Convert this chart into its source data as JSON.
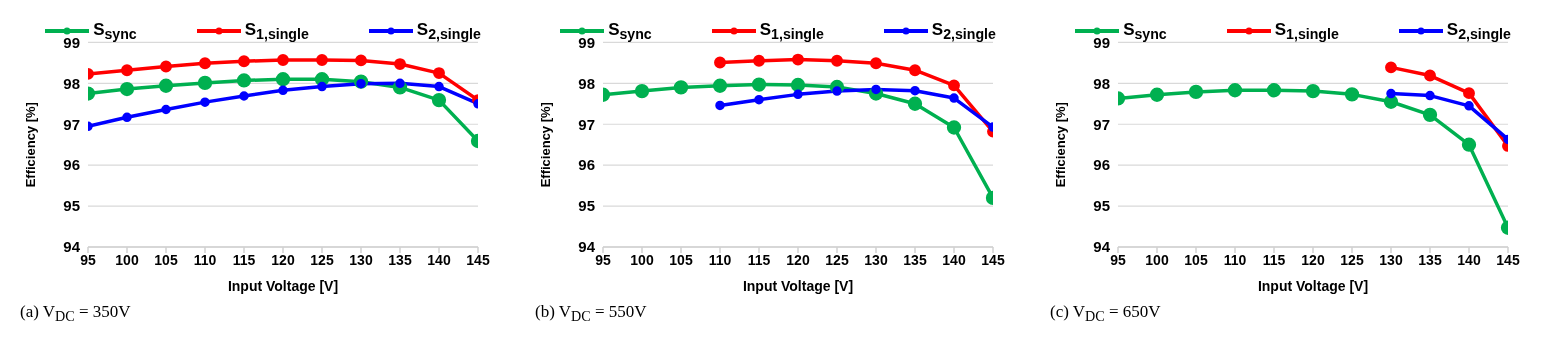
{
  "chart_data": [
    {
      "type": "line",
      "annotations": [
        "(a) V$_{DC}$ = 350V"
      ],
      "xlabel": "Input Voltage [V]",
      "ylabel": "Efficiency [%]",
      "x": [
        95,
        100,
        105,
        110,
        115,
        120,
        125,
        130,
        135,
        140,
        145
      ],
      "xlim": [
        95,
        145
      ],
      "xticks": [
        95,
        100,
        105,
        110,
        115,
        120,
        125,
        130,
        135,
        140,
        145
      ],
      "ylim": [
        94,
        99
      ],
      "yticks": [
        94,
        95,
        96,
        97,
        98,
        99
      ],
      "grid": "y",
      "legend": "top",
      "marker": "circle",
      "line_style": "solid",
      "series": [
        {
          "name": "S$_{sync}$",
          "color": "#00b050",
          "values": [
            97.75,
            97.86,
            97.94,
            98.01,
            98.07,
            98.1,
            98.1,
            98.04,
            97.9,
            97.59,
            96.59
          ]
        },
        {
          "name": "S$_{1,single}$",
          "color": "#ff0000",
          "values": [
            98.23,
            98.32,
            98.41,
            98.49,
            98.54,
            98.57,
            98.57,
            98.56,
            98.47,
            98.25,
            97.59
          ]
        },
        {
          "name": "S$_{2,single}$",
          "color": "#0000ff",
          "values": [
            96.95,
            97.17,
            97.36,
            97.54,
            97.69,
            97.83,
            97.92,
            97.99,
            98.0,
            97.92,
            97.5
          ]
        }
      ]
    },
    {
      "type": "line",
      "annotations": [
        "(b) V$_{DC}$ = 550V"
      ],
      "xlabel": "Input Voltage [V]",
      "ylabel": "Efficiency [%]",
      "x": [
        95,
        100,
        105,
        110,
        115,
        120,
        125,
        130,
        135,
        140,
        145
      ],
      "xlim": [
        95,
        145
      ],
      "xticks": [
        95,
        100,
        105,
        110,
        115,
        120,
        125,
        130,
        135,
        140,
        145
      ],
      "ylim": [
        94,
        99
      ],
      "yticks": [
        94,
        95,
        96,
        97,
        98,
        99
      ],
      "grid": "y",
      "legend": "top",
      "marker": "circle",
      "line_style": "solid",
      "series": [
        {
          "name": "S$_{sync}$",
          "color": "#00b050",
          "values": [
            97.72,
            97.81,
            97.9,
            97.94,
            97.97,
            97.96,
            97.91,
            97.75,
            97.5,
            96.92,
            95.2
          ]
        },
        {
          "name": "S$_{1,single}$",
          "color": "#ff0000",
          "values": [
            null,
            null,
            null,
            98.51,
            98.55,
            98.58,
            98.55,
            98.49,
            98.32,
            97.95,
            96.82
          ]
        },
        {
          "name": "S$_{2,single}$",
          "color": "#0000ff",
          "values": [
            null,
            null,
            null,
            97.46,
            97.6,
            97.73,
            97.81,
            97.85,
            97.82,
            97.64,
            96.93
          ]
        }
      ]
    },
    {
      "type": "line",
      "annotations": [
        "(c) V$_{DC}$ = 650V"
      ],
      "xlabel": "Input Voltage [V]",
      "ylabel": "Efficiency [%]",
      "x": [
        95,
        100,
        105,
        110,
        115,
        120,
        125,
        130,
        135,
        140,
        145
      ],
      "xlim": [
        95,
        145
      ],
      "xticks": [
        95,
        100,
        105,
        110,
        115,
        120,
        125,
        130,
        135,
        140,
        145
      ],
      "ylim": [
        94,
        99
      ],
      "yticks": [
        94,
        95,
        96,
        97,
        98,
        99
      ],
      "grid": "y",
      "legend": "top",
      "marker": "circle",
      "line_style": "solid",
      "series": [
        {
          "name": "S$_{sync}$",
          "color": "#00b050",
          "values": [
            97.63,
            97.72,
            97.79,
            97.83,
            97.83,
            97.81,
            97.73,
            97.55,
            97.23,
            96.5,
            94.47
          ]
        },
        {
          "name": "S$_{1,single}$",
          "color": "#ff0000",
          "values": [
            null,
            null,
            null,
            null,
            null,
            null,
            null,
            98.39,
            98.19,
            97.76,
            96.47
          ]
        },
        {
          "name": "S$_{2,single}$",
          "color": "#0000ff",
          "values": [
            null,
            null,
            null,
            null,
            null,
            null,
            null,
            97.75,
            97.7,
            97.45,
            96.63
          ]
        }
      ]
    }
  ]
}
